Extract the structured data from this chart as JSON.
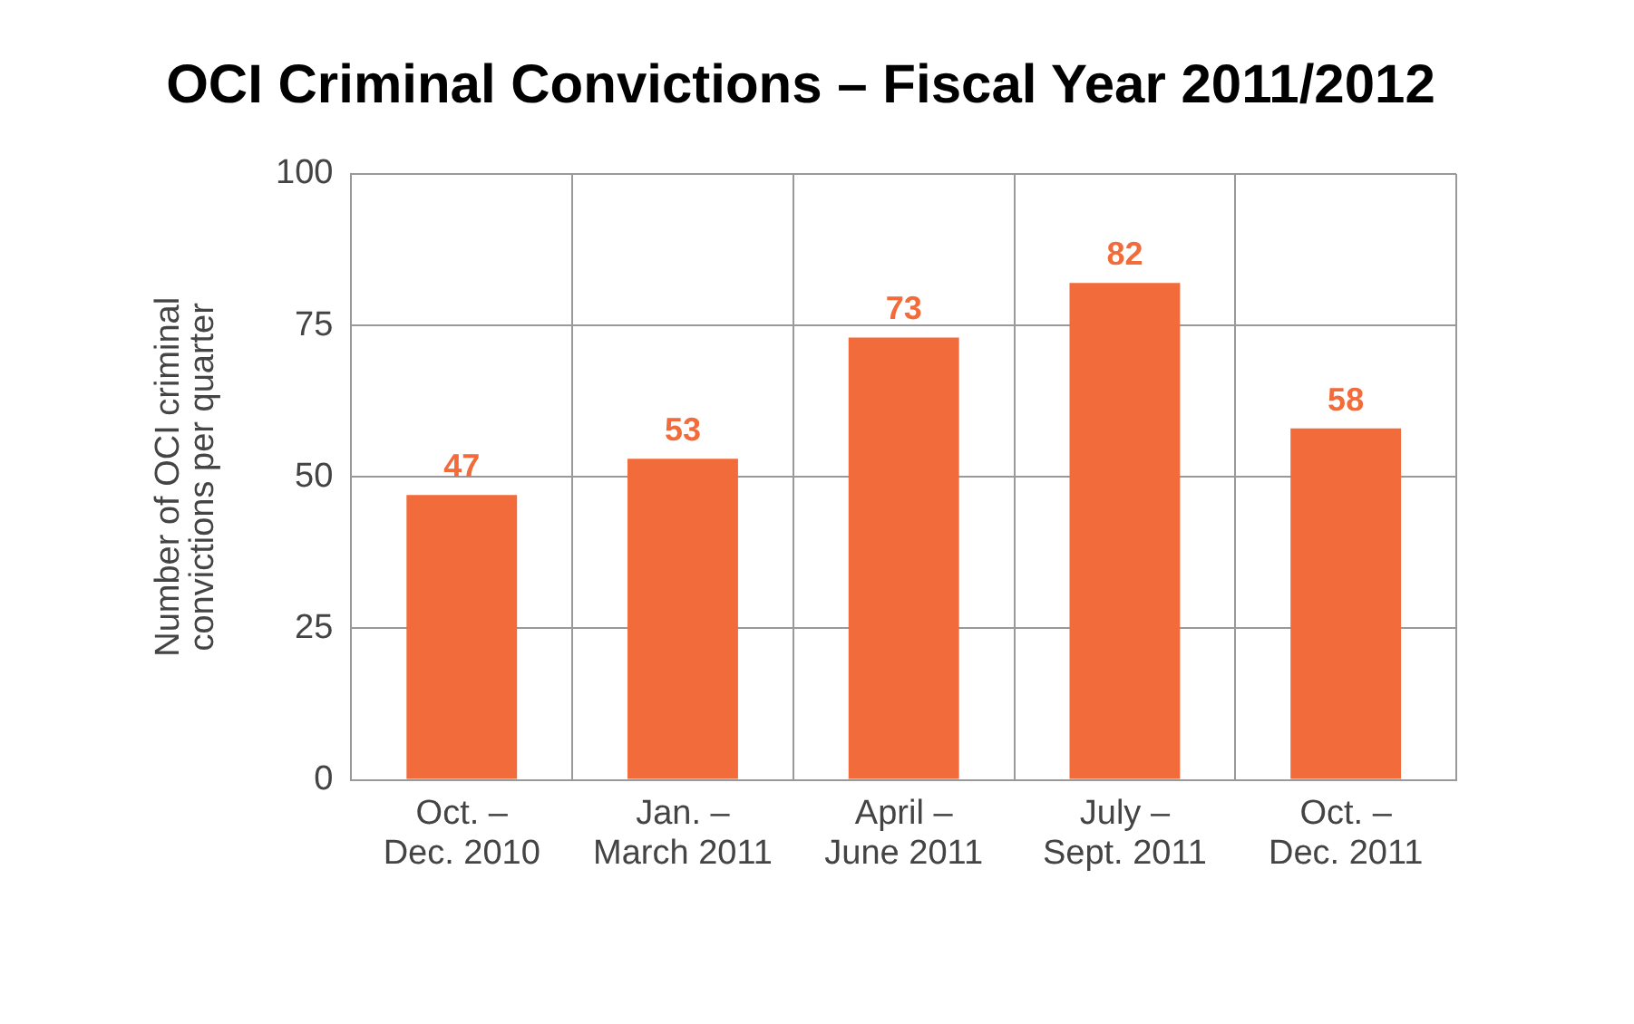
{
  "chart_data": {
    "type": "bar",
    "title": "OCI Criminal Convictions – Fiscal Year 2011/2012",
    "ylabel": "Number of OCI criminal convictions per quarter",
    "categories": [
      "Oct. – Dec. 2010",
      "Jan. – March 2011",
      "April – June 2011",
      "July – Sept. 2011",
      "Oct. – Dec. 2011"
    ],
    "values": [
      47,
      53,
      73,
      82,
      58
    ],
    "color": "#f26b3a",
    "ylim": [
      0,
      100
    ],
    "yticks": [
      0,
      25,
      50,
      75,
      100
    ],
    "grid": true,
    "data_labels": true
  }
}
